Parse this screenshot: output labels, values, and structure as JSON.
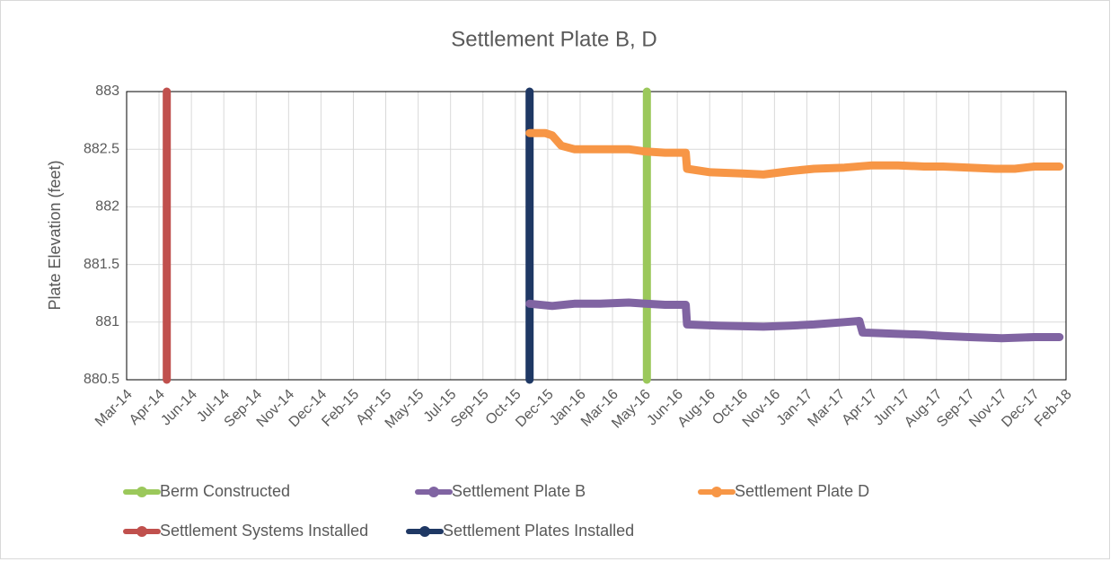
{
  "chart_data": {
    "type": "line",
    "title": "Settlement Plate B, D",
    "y_label": "Plate Elevation (feet)",
    "xlim": [
      41699,
      43149
    ],
    "xticks": [
      {
        "value": 41699,
        "label": "Mar-14"
      },
      {
        "value": 41749,
        "label": "Apr-14"
      },
      {
        "value": 41799,
        "label": "Jun-14"
      },
      {
        "value": 41849,
        "label": "Jul-14"
      },
      {
        "value": 41899,
        "label": "Sep-14"
      },
      {
        "value": 41949,
        "label": "Nov-14"
      },
      {
        "value": 41999,
        "label": "Dec-14"
      },
      {
        "value": 42049,
        "label": "Feb-15"
      },
      {
        "value": 42099,
        "label": "Apr-15"
      },
      {
        "value": 42149,
        "label": "May-15"
      },
      {
        "value": 42199,
        "label": "Jul-15"
      },
      {
        "value": 42249,
        "label": "Sep-15"
      },
      {
        "value": 42299,
        "label": "Oct-15"
      },
      {
        "value": 42349,
        "label": "Dec-15"
      },
      {
        "value": 42399,
        "label": "Jan-16"
      },
      {
        "value": 42449,
        "label": "Mar-16"
      },
      {
        "value": 42499,
        "label": "May-16"
      },
      {
        "value": 42549,
        "label": "Jun-16"
      },
      {
        "value": 42599,
        "label": "Aug-16"
      },
      {
        "value": 42649,
        "label": "Oct-16"
      },
      {
        "value": 42699,
        "label": "Nov-16"
      },
      {
        "value": 42749,
        "label": "Jan-17"
      },
      {
        "value": 42799,
        "label": "Mar-17"
      },
      {
        "value": 42849,
        "label": "Apr-17"
      },
      {
        "value": 42899,
        "label": "Jun-17"
      },
      {
        "value": 42949,
        "label": "Aug-17"
      },
      {
        "value": 42999,
        "label": "Sep-17"
      },
      {
        "value": 43049,
        "label": "Nov-17"
      },
      {
        "value": 43099,
        "label": "Dec-17"
      },
      {
        "value": 43149,
        "label": "Feb-18"
      }
    ],
    "ylim": [
      880.5,
      883
    ],
    "yticks": [
      880.5,
      881,
      881.5,
      882,
      882.5,
      883
    ],
    "grid": true,
    "legend": "bottom",
    "series": [
      {
        "name": "Berm Constructed",
        "color": "#9bc85b",
        "x": [
          42502,
          42502
        ],
        "values": [
          880.5,
          883
        ]
      },
      {
        "name": "Settlement Plate B",
        "color": "#8064a2",
        "x": [
          42321,
          42356,
          42390,
          42430,
          42474,
          42500,
          42530,
          42562,
          42564,
          42612,
          42682,
          42723,
          42760,
          42807,
          42830,
          42835,
          42880,
          42930,
          42959,
          43000,
          43050,
          43100,
          43139
        ],
        "values": [
          881.16,
          881.14,
          881.16,
          881.16,
          881.17,
          881.16,
          881.15,
          881.15,
          880.98,
          880.97,
          880.96,
          880.97,
          880.98,
          881.0,
          881.01,
          880.91,
          880.9,
          880.89,
          880.88,
          880.87,
          880.86,
          880.87,
          880.87
        ]
      },
      {
        "name": "Settlement Plate D",
        "color": "#f79646",
        "x": [
          42321,
          42345,
          42356,
          42370,
          42390,
          42430,
          42474,
          42500,
          42530,
          42562,
          42564,
          42600,
          42650,
          42682,
          42723,
          42760,
          42807,
          42850,
          42890,
          42930,
          42959,
          43000,
          43040,
          43070,
          43100,
          43139
        ],
        "values": [
          882.64,
          882.64,
          882.62,
          882.53,
          882.5,
          882.5,
          882.5,
          882.48,
          882.47,
          882.47,
          882.33,
          882.3,
          882.29,
          882.28,
          882.31,
          882.33,
          882.34,
          882.36,
          882.36,
          882.35,
          882.35,
          882.34,
          882.33,
          882.33,
          882.35,
          882.35
        ]
      },
      {
        "name": "Settlement Systems Installed",
        "color": "#c0504d",
        "x": [
          41761,
          41761
        ],
        "values": [
          880.5,
          883
        ]
      },
      {
        "name": "Settlement Plates Installed",
        "color": "#1f3864",
        "x": [
          42321,
          42321
        ],
        "values": [
          880.5,
          883
        ]
      }
    ]
  }
}
